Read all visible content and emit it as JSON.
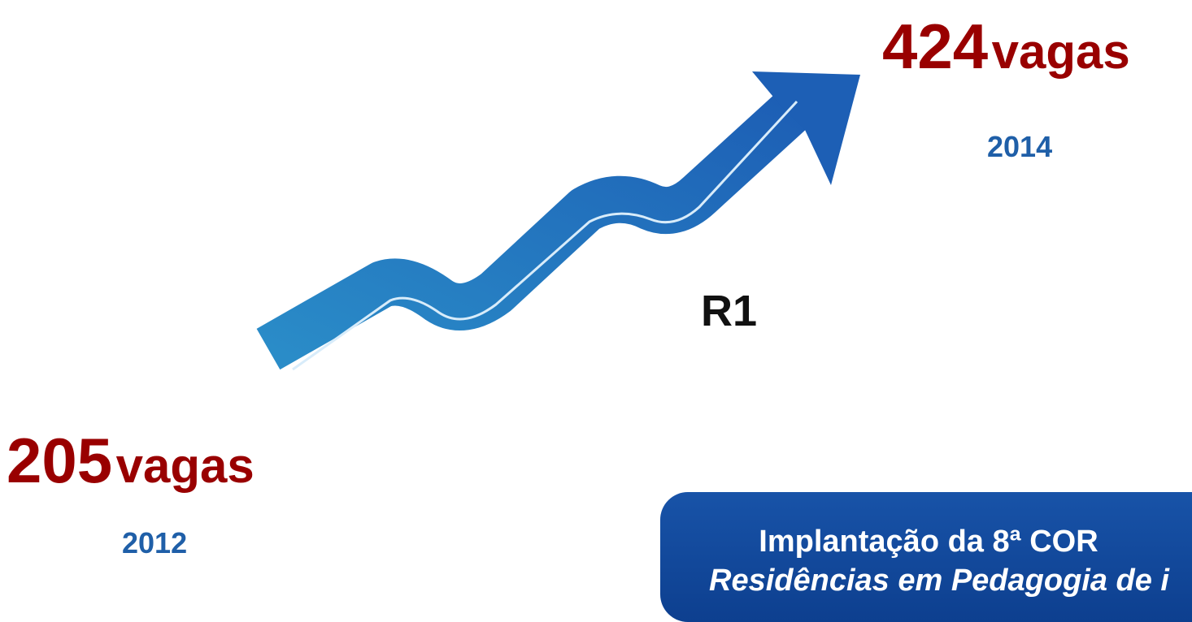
{
  "start": {
    "number": 205,
    "unit": "vagas",
    "year": "2012"
  },
  "end": {
    "number": 424,
    "unit": "vagas",
    "year": "2014"
  },
  "label": "R1",
  "box": {
    "line1": "Implantação da 8ª COR",
    "line2": "Residências em Pedagogia de i"
  }
}
